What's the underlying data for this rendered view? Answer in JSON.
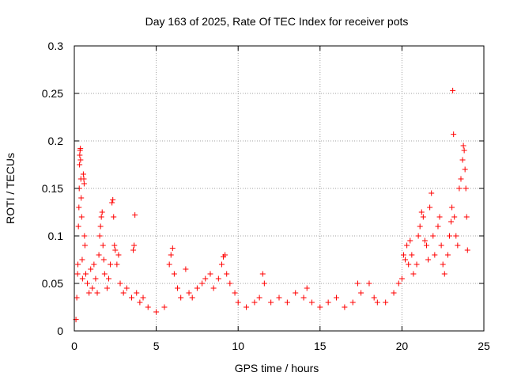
{
  "chart_data": {
    "type": "scatter",
    "title": "Day 163 of 2025, Rate Of TEC Index for receiver pots",
    "xlabel": "GPS time / hours",
    "ylabel": "ROTI / TECUs",
    "xlim": [
      0,
      25
    ],
    "ylim": [
      0,
      0.3
    ],
    "x_ticks": [
      0,
      5,
      10,
      15,
      20,
      25
    ],
    "x_tick_labels": [
      "0",
      "5",
      "10",
      "15",
      "20",
      "25"
    ],
    "y_ticks": [
      0,
      0.05,
      0.1,
      0.15,
      0.2,
      0.25,
      0.3
    ],
    "y_tick_labels": [
      "0",
      "0.05",
      "0.1",
      "0.15",
      "0.2",
      "0.25",
      "0.3"
    ],
    "grid": true,
    "marker": "plus",
    "series": [
      {
        "color": "#ff0000",
        "points": [
          [
            0.1,
            0.012
          ],
          [
            0.15,
            0.035
          ],
          [
            0.2,
            0.06
          ],
          [
            0.22,
            0.07
          ],
          [
            0.25,
            0.11
          ],
          [
            0.28,
            0.13
          ],
          [
            0.3,
            0.15
          ],
          [
            0.32,
            0.175
          ],
          [
            0.33,
            0.185
          ],
          [
            0.35,
            0.19
          ],
          [
            0.37,
            0.192
          ],
          [
            0.38,
            0.18
          ],
          [
            0.4,
            0.16
          ],
          [
            0.42,
            0.14
          ],
          [
            0.45,
            0.12
          ],
          [
            0.48,
            0.075
          ],
          [
            0.5,
            0.055
          ],
          [
            0.55,
            0.165
          ],
          [
            0.58,
            0.16
          ],
          [
            0.6,
            0.155
          ],
          [
            0.62,
            0.1
          ],
          [
            0.65,
            0.09
          ],
          [
            0.7,
            0.06
          ],
          [
            0.8,
            0.05
          ],
          [
            0.9,
            0.04
          ],
          [
            1.0,
            0.065
          ],
          [
            1.1,
            0.045
          ],
          [
            1.2,
            0.07
          ],
          [
            1.3,
            0.055
          ],
          [
            1.4,
            0.04
          ],
          [
            1.5,
            0.08
          ],
          [
            1.55,
            0.1
          ],
          [
            1.6,
            0.11
          ],
          [
            1.65,
            0.12
          ],
          [
            1.7,
            0.125
          ],
          [
            1.75,
            0.09
          ],
          [
            1.8,
            0.075
          ],
          [
            1.85,
            0.06
          ],
          [
            2.0,
            0.045
          ],
          [
            2.1,
            0.055
          ],
          [
            2.2,
            0.07
          ],
          [
            2.3,
            0.135
          ],
          [
            2.35,
            0.138
          ],
          [
            2.4,
            0.12
          ],
          [
            2.45,
            0.09
          ],
          [
            2.5,
            0.085
          ],
          [
            2.6,
            0.07
          ],
          [
            2.7,
            0.08
          ],
          [
            2.8,
            0.05
          ],
          [
            3.0,
            0.04
          ],
          [
            3.2,
            0.045
          ],
          [
            3.5,
            0.035
          ],
          [
            3.6,
            0.085
          ],
          [
            3.65,
            0.09
          ],
          [
            3.7,
            0.122
          ],
          [
            3.8,
            0.04
          ],
          [
            4.0,
            0.03
          ],
          [
            4.2,
            0.035
          ],
          [
            4.5,
            0.025
          ],
          [
            5.0,
            0.02
          ],
          [
            5.5,
            0.025
          ],
          [
            5.8,
            0.07
          ],
          [
            5.9,
            0.08
          ],
          [
            6.0,
            0.087
          ],
          [
            6.1,
            0.06
          ],
          [
            6.3,
            0.045
          ],
          [
            6.5,
            0.035
          ],
          [
            6.8,
            0.065
          ],
          [
            7.0,
            0.04
          ],
          [
            7.2,
            0.035
          ],
          [
            7.5,
            0.045
          ],
          [
            7.8,
            0.05
          ],
          [
            8.0,
            0.055
          ],
          [
            8.3,
            0.06
          ],
          [
            8.5,
            0.045
          ],
          [
            8.8,
            0.055
          ],
          [
            9.0,
            0.07
          ],
          [
            9.1,
            0.078
          ],
          [
            9.2,
            0.08
          ],
          [
            9.3,
            0.06
          ],
          [
            9.5,
            0.05
          ],
          [
            9.8,
            0.04
          ],
          [
            10.0,
            0.03
          ],
          [
            10.5,
            0.025
          ],
          [
            11.0,
            0.03
          ],
          [
            11.3,
            0.035
          ],
          [
            11.5,
            0.06
          ],
          [
            11.6,
            0.05
          ],
          [
            12.0,
            0.03
          ],
          [
            12.5,
            0.035
          ],
          [
            13.0,
            0.03
          ],
          [
            13.5,
            0.04
          ],
          [
            14.0,
            0.035
          ],
          [
            14.2,
            0.045
          ],
          [
            14.5,
            0.03
          ],
          [
            15.0,
            0.025
          ],
          [
            15.5,
            0.03
          ],
          [
            16.0,
            0.035
          ],
          [
            16.5,
            0.025
          ],
          [
            17.0,
            0.03
          ],
          [
            17.3,
            0.05
          ],
          [
            17.5,
            0.04
          ],
          [
            18.0,
            0.05
          ],
          [
            18.3,
            0.035
          ],
          [
            18.5,
            0.03
          ],
          [
            19.0,
            0.03
          ],
          [
            19.5,
            0.04
          ],
          [
            19.8,
            0.05
          ],
          [
            20.0,
            0.055
          ],
          [
            20.1,
            0.08
          ],
          [
            20.2,
            0.075
          ],
          [
            20.3,
            0.09
          ],
          [
            20.4,
            0.07
          ],
          [
            20.5,
            0.095
          ],
          [
            20.6,
            0.08
          ],
          [
            20.7,
            0.06
          ],
          [
            20.9,
            0.07
          ],
          [
            21.0,
            0.1
          ],
          [
            21.1,
            0.11
          ],
          [
            21.2,
            0.125
          ],
          [
            21.3,
            0.12
          ],
          [
            21.4,
            0.095
          ],
          [
            21.5,
            0.09
          ],
          [
            21.6,
            0.075
          ],
          [
            21.7,
            0.13
          ],
          [
            21.8,
            0.145
          ],
          [
            21.9,
            0.1
          ],
          [
            22.0,
            0.08
          ],
          [
            22.2,
            0.11
          ],
          [
            22.3,
            0.12
          ],
          [
            22.4,
            0.09
          ],
          [
            22.5,
            0.07
          ],
          [
            22.6,
            0.06
          ],
          [
            22.8,
            0.08
          ],
          [
            22.9,
            0.1
          ],
          [
            23.0,
            0.115
          ],
          [
            23.05,
            0.13
          ],
          [
            23.1,
            0.253
          ],
          [
            23.15,
            0.207
          ],
          [
            23.2,
            0.12
          ],
          [
            23.3,
            0.1
          ],
          [
            23.4,
            0.09
          ],
          [
            23.5,
            0.15
          ],
          [
            23.6,
            0.16
          ],
          [
            23.7,
            0.18
          ],
          [
            23.75,
            0.195
          ],
          [
            23.8,
            0.19
          ],
          [
            23.85,
            0.17
          ],
          [
            23.9,
            0.15
          ],
          [
            23.95,
            0.12
          ],
          [
            24.0,
            0.085
          ]
        ]
      }
    ]
  }
}
